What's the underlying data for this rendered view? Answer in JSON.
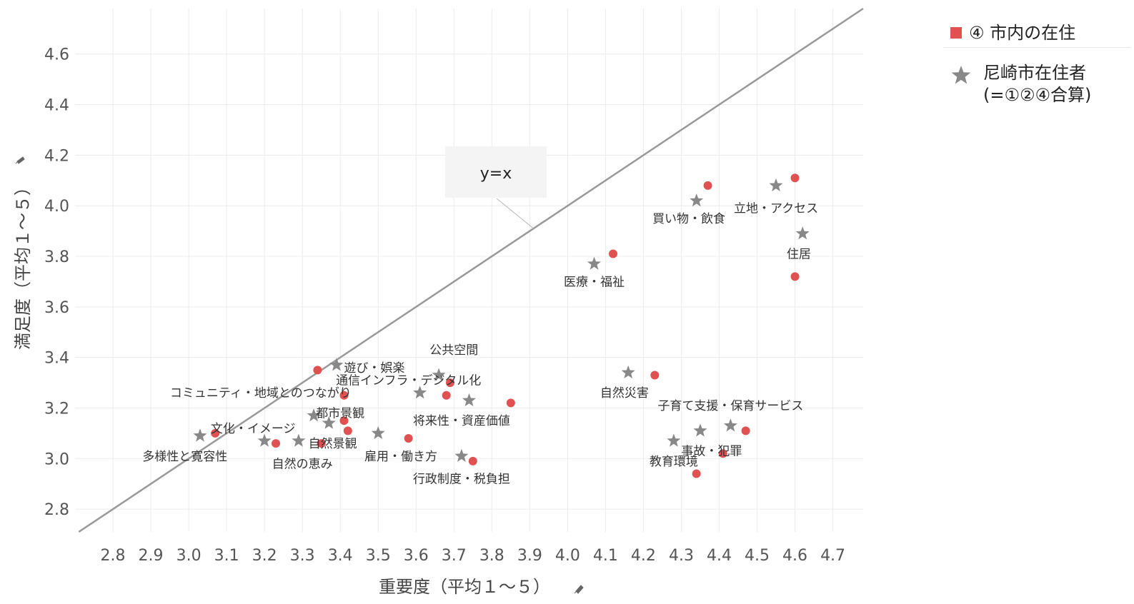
{
  "chart_data": {
    "type": "scatter",
    "xlabel": "重要度（平均１～５）",
    "ylabel": "満足度（平均１～５）",
    "xlim": [
      2.7,
      4.78
    ],
    "ylim": [
      2.71,
      4.78
    ],
    "x_ticks": [
      "2.8",
      "2.9",
      "3.0",
      "3.1",
      "3.2",
      "3.3",
      "3.4",
      "3.5",
      "3.6",
      "3.7",
      "3.8",
      "3.9",
      "4.0",
      "4.1",
      "4.2",
      "4.3",
      "4.4",
      "4.5",
      "4.6",
      "4.7"
    ],
    "y_ticks": [
      "2.8",
      "3.0",
      "3.2",
      "3.4",
      "3.6",
      "3.8",
      "4.0",
      "4.2",
      "4.4",
      "4.6"
    ],
    "grid": true,
    "legend_position": "top-right",
    "reference_line": {
      "label": "y=x",
      "color": "#999999"
    },
    "series": [
      {
        "name": "④ 市内の在住",
        "marker": "circle",
        "color": "#e05252",
        "points": [
          {
            "x": 3.07,
            "y": 3.1
          },
          {
            "x": 3.23,
            "y": 3.06
          },
          {
            "x": 3.35,
            "y": 3.06
          },
          {
            "x": 3.34,
            "y": 3.35
          },
          {
            "x": 3.41,
            "y": 3.25
          },
          {
            "x": 3.41,
            "y": 3.15
          },
          {
            "x": 3.42,
            "y": 3.11
          },
          {
            "x": 3.58,
            "y": 3.08
          },
          {
            "x": 3.68,
            "y": 3.25
          },
          {
            "x": 3.69,
            "y": 3.3
          },
          {
            "x": 3.75,
            "y": 2.99
          },
          {
            "x": 3.85,
            "y": 3.22
          },
          {
            "x": 4.12,
            "y": 3.81
          },
          {
            "x": 4.23,
            "y": 3.33
          },
          {
            "x": 4.34,
            "y": 2.94
          },
          {
            "x": 4.37,
            "y": 4.08
          },
          {
            "x": 4.41,
            "y": 3.02
          },
          {
            "x": 4.47,
            "y": 3.11
          },
          {
            "x": 4.6,
            "y": 4.11
          },
          {
            "x": 4.6,
            "y": 3.72
          }
        ]
      },
      {
        "name": "尼崎市在住者\n(=①②④合算)",
        "marker": "star",
        "color": "#888888",
        "points": [
          {
            "x": 3.03,
            "y": 3.09
          },
          {
            "x": 3.2,
            "y": 3.07
          },
          {
            "x": 3.29,
            "y": 3.07
          },
          {
            "x": 3.33,
            "y": 3.17
          },
          {
            "x": 3.37,
            "y": 3.14
          },
          {
            "x": 3.39,
            "y": 3.37
          },
          {
            "x": 3.5,
            "y": 3.1
          },
          {
            "x": 3.61,
            "y": 3.26
          },
          {
            "x": 3.66,
            "y": 3.33
          },
          {
            "x": 3.72,
            "y": 3.01
          },
          {
            "x": 3.74,
            "y": 3.23
          },
          {
            "x": 4.07,
            "y": 3.77
          },
          {
            "x": 4.16,
            "y": 3.34
          },
          {
            "x": 4.28,
            "y": 3.07
          },
          {
            "x": 4.34,
            "y": 4.02
          },
          {
            "x": 4.35,
            "y": 3.11
          },
          {
            "x": 4.43,
            "y": 3.13
          },
          {
            "x": 4.55,
            "y": 4.08
          },
          {
            "x": 4.62,
            "y": 3.89
          }
        ]
      }
    ],
    "annotations": [
      {
        "text": "多様性と寛容性",
        "x": 2.99,
        "y": 3.01
      },
      {
        "text": "文化・イメージ",
        "x": 3.17,
        "y": 3.12
      },
      {
        "text": "自然の恵み",
        "x": 3.3,
        "y": 2.98
      },
      {
        "text": "自然景観",
        "x": 3.38,
        "y": 3.06
      },
      {
        "text": "都市景観",
        "x": 3.4,
        "y": 3.18
      },
      {
        "text": "コミュニティ・地域とのつながり",
        "x": 3.19,
        "y": 3.26
      },
      {
        "text": "遊び・娯楽",
        "x": 3.49,
        "y": 3.36
      },
      {
        "text": "通信インフラ・デジタル化",
        "x": 3.58,
        "y": 3.31
      },
      {
        "text": "公共空間",
        "x": 3.7,
        "y": 3.43
      },
      {
        "text": "雇用・働き方",
        "x": 3.56,
        "y": 3.01
      },
      {
        "text": "将来性・資産価値",
        "x": 3.72,
        "y": 3.15
      },
      {
        "text": "行政制度・税負担",
        "x": 3.72,
        "y": 2.92
      },
      {
        "text": "医療・福祉",
        "x": 4.07,
        "y": 3.7
      },
      {
        "text": "自然災害",
        "x": 4.15,
        "y": 3.26
      },
      {
        "text": "子育て支援・保育サービス",
        "x": 4.43,
        "y": 3.21
      },
      {
        "text": "事故・犯罪",
        "x": 4.38,
        "y": 3.03
      },
      {
        "text": "教育環境",
        "x": 4.28,
        "y": 2.99
      },
      {
        "text": "買い物・飲食",
        "x": 4.32,
        "y": 3.95
      },
      {
        "text": "立地・アクセス",
        "x": 4.55,
        "y": 3.99
      },
      {
        "text": "住居",
        "x": 4.61,
        "y": 3.81
      }
    ]
  }
}
